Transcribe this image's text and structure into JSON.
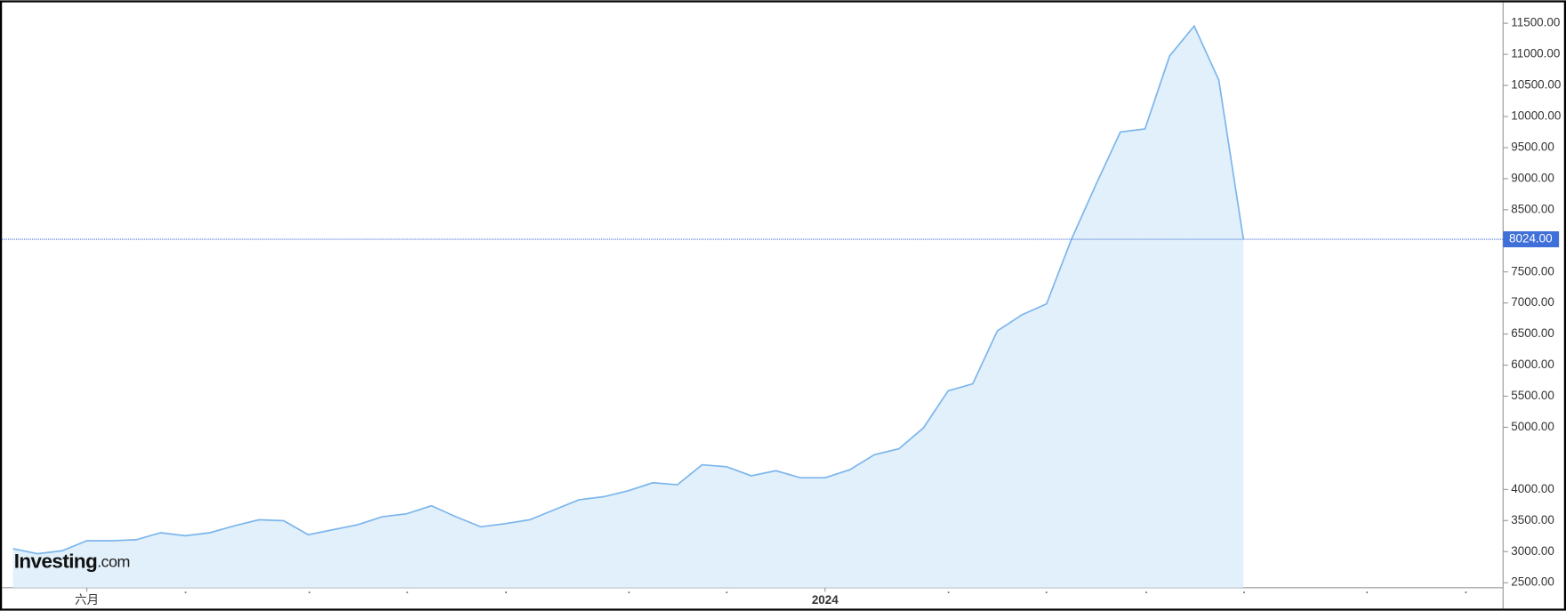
{
  "chart_data": {
    "type": "area",
    "categories": [
      null,
      null,
      null,
      "六月",
      null,
      null,
      null,
      null,
      null,
      null,
      null,
      null,
      null,
      null,
      null,
      null,
      null,
      null,
      null,
      null,
      null,
      null,
      null,
      null,
      null,
      null,
      null,
      null,
      null,
      null,
      null,
      null,
      null,
      "2024",
      null,
      null,
      null,
      null,
      null,
      null,
      null,
      null,
      null,
      null,
      null,
      null,
      null,
      null,
      null,
      null,
      null
    ],
    "series": [
      {
        "color": "#7cb5ec",
        "fill": "#e1f0fa",
        "values": [
          3047,
          2966,
          3014,
          3175,
          3175,
          3191,
          3304,
          3256,
          3304,
          3416,
          3513,
          3497,
          3272,
          3352,
          3432,
          3561,
          3609,
          3738,
          3561,
          3400,
          3449,
          3513,
          3674,
          3834,
          3883,
          3979,
          4108,
          4076,
          4397,
          4365,
          4220,
          4301,
          4188,
          4188,
          4317,
          4558,
          4654,
          4992,
          5587,
          5699,
          6551,
          6809,
          6986,
          8014,
          8899,
          9751,
          9799,
          10973,
          11455,
          10587,
          8024
        ]
      }
    ],
    "ylim": [
      2420,
      11820
    ],
    "yticks": [
      {
        "value": 2500,
        "label": "2500.00"
      },
      {
        "value": 3000,
        "label": "3000.00"
      },
      {
        "value": 3500,
        "label": "3500.00"
      },
      {
        "value": 4000,
        "label": "4000.00"
      },
      {
        "value": 5000,
        "label": "5000.00"
      },
      {
        "value": 5500,
        "label": "5500.00"
      },
      {
        "value": 6000,
        "label": "6000.00"
      },
      {
        "value": 6500,
        "label": "6500.00"
      },
      {
        "value": 7000,
        "label": "7000.00"
      },
      {
        "value": 7500,
        "label": "7500.00"
      },
      {
        "value": 8500,
        "label": "8500.00"
      },
      {
        "value": 9000,
        "label": "9000.00"
      },
      {
        "value": 9500,
        "label": "9500.00"
      },
      {
        "value": 10000,
        "label": "10000.00"
      },
      {
        "value": 10500,
        "label": "10500.00"
      },
      {
        "value": 11000,
        "label": "11000.00"
      },
      {
        "value": 11500,
        "label": "11500.00"
      }
    ],
    "last_price": {
      "value": 8024,
      "label": "8024.00",
      "color": "#3f6fd8"
    },
    "logo": [
      "Investing",
      ".com"
    ]
  }
}
